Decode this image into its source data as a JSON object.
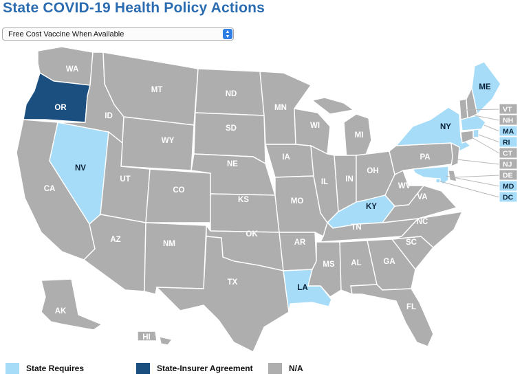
{
  "title": "State COVID-19 Health Policy Actions",
  "dropdown": {
    "selected": "Free Cost Vaccine When Available"
  },
  "colors": {
    "requires": "#a6dcf7",
    "agreement": "#1a4f80",
    "na": "#aeaeae"
  },
  "legend": [
    {
      "key": "requires",
      "label": "State Requires",
      "color": "#a6dcf7"
    },
    {
      "key": "agreement",
      "label": "State-Insurer Agreement",
      "color": "#1a4f80"
    },
    {
      "key": "na",
      "label": "N/A",
      "color": "#aeaeae"
    }
  ],
  "states": {
    "WA": "na",
    "OR": "agreement",
    "CA": "na",
    "NV": "requires",
    "ID": "na",
    "MT": "na",
    "WY": "na",
    "UT": "na",
    "CO": "na",
    "AZ": "na",
    "NM": "na",
    "ND": "na",
    "SD": "na",
    "NE": "na",
    "KS": "na",
    "OK": "na",
    "TX": "na",
    "MN": "na",
    "IA": "na",
    "MO": "na",
    "AR": "na",
    "LA": "requires",
    "WI": "na",
    "IL": "na",
    "MI": "na",
    "IN": "na",
    "OH": "na",
    "KY": "requires",
    "TN": "na",
    "MS": "na",
    "AL": "na",
    "GA": "na",
    "FL": "na",
    "SC": "na",
    "NC": "na",
    "VA": "na",
    "WV": "na",
    "PA": "na",
    "NY": "requires",
    "ME": "requires",
    "VT": "na",
    "NH": "na",
    "MA": "requires",
    "RI": "requires",
    "CT": "na",
    "NJ": "na",
    "DE": "na",
    "MD": "requires",
    "DC": "requires",
    "AK": "na",
    "HI": "na"
  },
  "state_labels": {
    "WA": "WA",
    "OR": "OR",
    "CA": "CA",
    "NV": "NV",
    "ID": "ID",
    "MT": "MT",
    "WY": "WY",
    "UT": "UT",
    "CO": "CO",
    "AZ": "AZ",
    "NM": "NM",
    "ND": "ND",
    "SD": "SD",
    "NE": "NE",
    "KS": "KS",
    "OK": "OK",
    "TX": "TX",
    "MN": "MN",
    "IA": "IA",
    "MO": "MO",
    "AR": "AR",
    "LA": "LA",
    "WI": "WI",
    "IL": "IL",
    "MI": "MI",
    "IN": "IN",
    "OH": "OH",
    "KY": "KY",
    "TN": "TN",
    "MS": "MS",
    "AL": "AL",
    "GA": "GA",
    "FL": "FL",
    "SC": "SC",
    "NC": "NC",
    "VA": "VA",
    "WV": "WV",
    "PA": "PA",
    "NY": "NY",
    "ME": "ME",
    "AK": "AK",
    "HI": "HI"
  },
  "small_state_boxes": [
    "VT",
    "NH",
    "MA",
    "RI",
    "CT",
    "NJ",
    "DE",
    "MD",
    "DC"
  ]
}
